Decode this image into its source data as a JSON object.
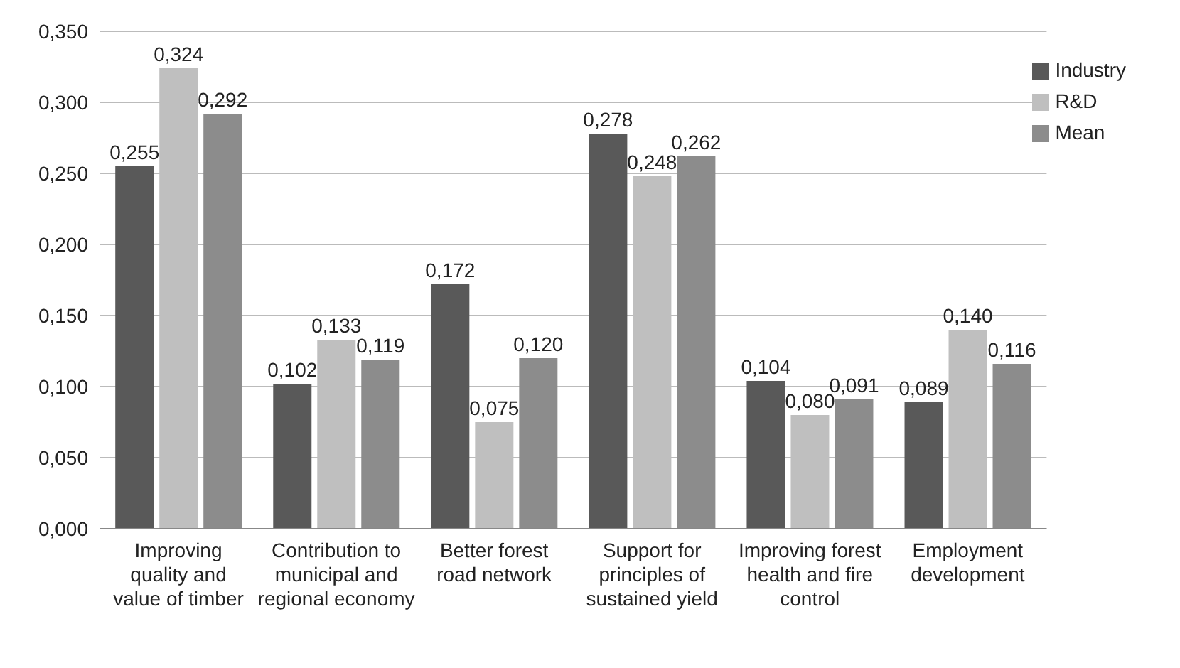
{
  "chart_data": {
    "type": "bar",
    "categories": [
      "Improving quality and value of timber",
      "Contribution to municipal and regional economy",
      "Better forest road network",
      "Support for principles of sustained yield",
      "Improving forest health and fire control",
      "Employment development"
    ],
    "series": [
      {
        "name": "Industry",
        "color": "#595959",
        "values": [
          0.255,
          0.102,
          0.172,
          0.278,
          0.104,
          0.089
        ],
        "value_labels": [
          "0,255",
          "0,102",
          "0,172",
          "0,278",
          "0,104",
          "0,089"
        ]
      },
      {
        "name": "R&D",
        "color": "#bfbfbf",
        "values": [
          0.324,
          0.133,
          0.075,
          0.248,
          0.08,
          0.14
        ],
        "value_labels": [
          "0,324",
          "0,133",
          "0,075",
          "0,248",
          "0,080",
          "0,140"
        ]
      },
      {
        "name": "Mean",
        "color": "#8c8c8c",
        "values": [
          0.292,
          0.119,
          0.12,
          0.262,
          0.091,
          0.116
        ],
        "value_labels": [
          "0,292",
          "0,119",
          "0,120",
          "0,262",
          "0,091",
          "0,116"
        ]
      }
    ],
    "ylim": [
      0,
      0.35
    ],
    "yticks": [
      {
        "value": 0,
        "label": "0,000"
      },
      {
        "value": 0.05,
        "label": "0,050"
      },
      {
        "value": 0.1,
        "label": "0,100"
      },
      {
        "value": 0.15,
        "label": "0,150"
      },
      {
        "value": 0.2,
        "label": "0,200"
      },
      {
        "value": 0.25,
        "label": "0,250"
      },
      {
        "value": 0.3,
        "label": "0,300"
      },
      {
        "value": 0.35,
        "label": "0,350"
      }
    ],
    "grid": "y",
    "legend": "top right"
  }
}
